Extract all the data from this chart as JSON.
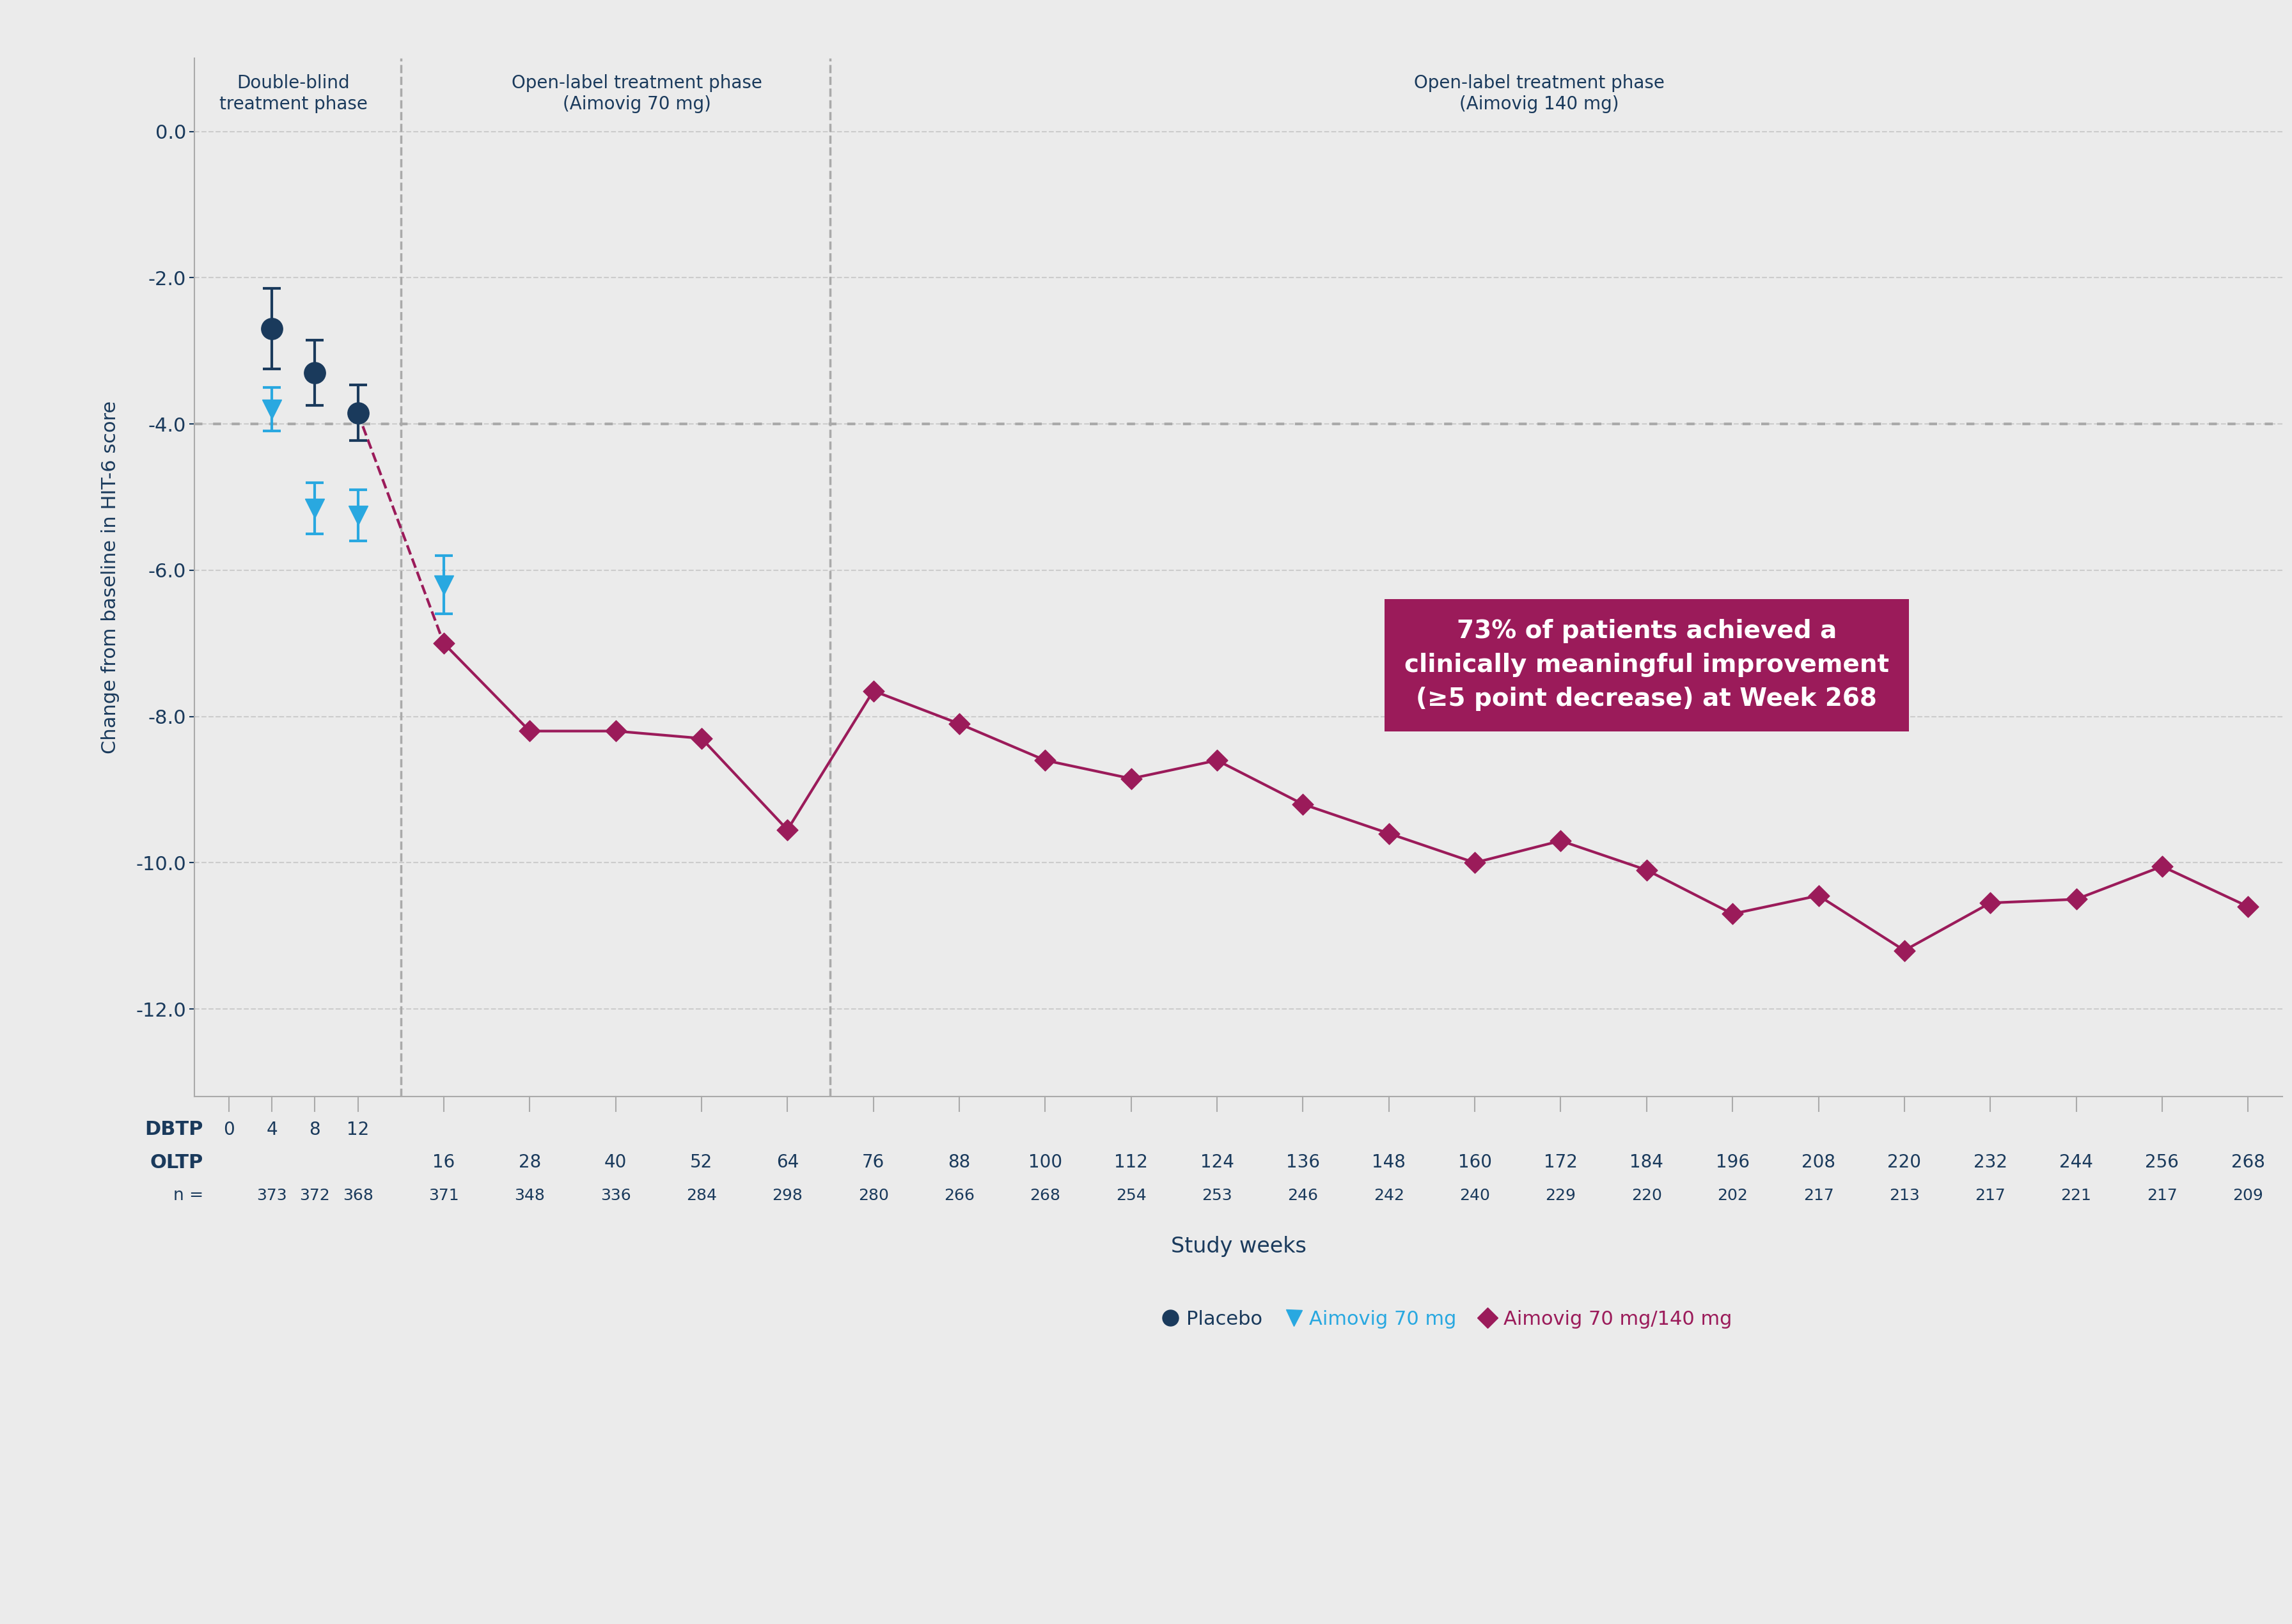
{
  "background_color": "#ebebeb",
  "plot_bg_color": "#ebebeb",
  "title_color": "#1a3a5c",
  "axis_color": "#1a3a5c",
  "grid_color": "#cccccc",
  "phase1_label": "Double-blind\ntreatment phase",
  "phase2_label": "Open-label treatment phase\n(Aimovig 70 mg)",
  "phase3_label": "Open-label treatment phase\n(Aimovig 140 mg)",
  "ylabel": "Change from baseline in HIT-6 score",
  "xlabel": "Study weeks",
  "ylim": [
    -13.2,
    1.0
  ],
  "yticks": [
    0.0,
    -2.0,
    -4.0,
    -6.0,
    -8.0,
    -10.0,
    -12.0
  ],
  "placebo_color": "#1a3a5c",
  "aimovig70_color": "#29a8e0",
  "aimovig140_color": "#9b1b5a",
  "dashed_transition_color": "#9b1b5a",
  "placebo_weeks_idx": [
    1,
    2,
    3
  ],
  "placebo_values": [
    -2.7,
    -3.3,
    -3.85
  ],
  "placebo_err_low": [
    0.55,
    0.45,
    0.38
  ],
  "placebo_err_high": [
    0.55,
    0.45,
    0.38
  ],
  "aimovig70_weeks_idx": [
    1,
    2,
    3,
    4
  ],
  "aimovig70_values": [
    -3.8,
    -5.15,
    -5.25,
    -6.2
  ],
  "aimovig70_err_low": [
    0.3,
    0.35,
    0.35,
    0.4
  ],
  "aimovig70_err_high": [
    0.3,
    0.35,
    0.35,
    0.4
  ],
  "oltp_idx": [
    4,
    5,
    6,
    7,
    8,
    9,
    10,
    11,
    12,
    13,
    14,
    15,
    16,
    17,
    18,
    19,
    20,
    21,
    22,
    23,
    24,
    25
  ],
  "oltp_values": [
    -7.0,
    -8.2,
    -8.2,
    -8.3,
    -9.55,
    -7.65,
    -8.1,
    -8.6,
    -8.85,
    -8.6,
    -9.2,
    -9.6,
    -10.0,
    -9.7,
    -10.1,
    -10.7,
    -10.45,
    -11.2,
    -10.55,
    -10.5,
    -10.05,
    -10.6
  ],
  "all_tick_labels": [
    "0",
    "4",
    "8",
    "12",
    "16",
    "28",
    "40",
    "52",
    "64",
    "76",
    "88",
    "100",
    "112",
    "124",
    "136",
    "148",
    "160",
    "172",
    "184",
    "196",
    "208",
    "220",
    "232",
    "244",
    "256",
    "268"
  ],
  "dbtp_tick_labels": [
    "0",
    "4",
    "8",
    "12"
  ],
  "oltp_tick_labels": [
    "16",
    "28",
    "40",
    "52",
    "64",
    "76",
    "88",
    "100",
    "112",
    "124",
    "136",
    "148",
    "160",
    "172",
    "184",
    "196",
    "208",
    "220",
    "232",
    "244",
    "256",
    "268"
  ],
  "n_labels_dbtp": [
    "373",
    "372",
    "368"
  ],
  "n_labels_oltp": [
    "371",
    "348",
    "336",
    "284",
    "298",
    "280",
    "266",
    "268",
    "254",
    "253",
    "246",
    "242",
    "240",
    "229",
    "220",
    "202",
    "217",
    "213",
    "217",
    "221",
    "217",
    "209"
  ],
  "annotation_text": "73% of patients achieved a\nclinically meaningful improvement\n(≥5 point decrease) at Week 268",
  "annotation_bg": "#9b1b5a",
  "annotation_text_color": "#ffffff",
  "dotted_line_y": -4.0,
  "dotted_line_color": "#aaaaaa",
  "boundary1_idx": 3.5,
  "boundary2_idx": 8.5
}
